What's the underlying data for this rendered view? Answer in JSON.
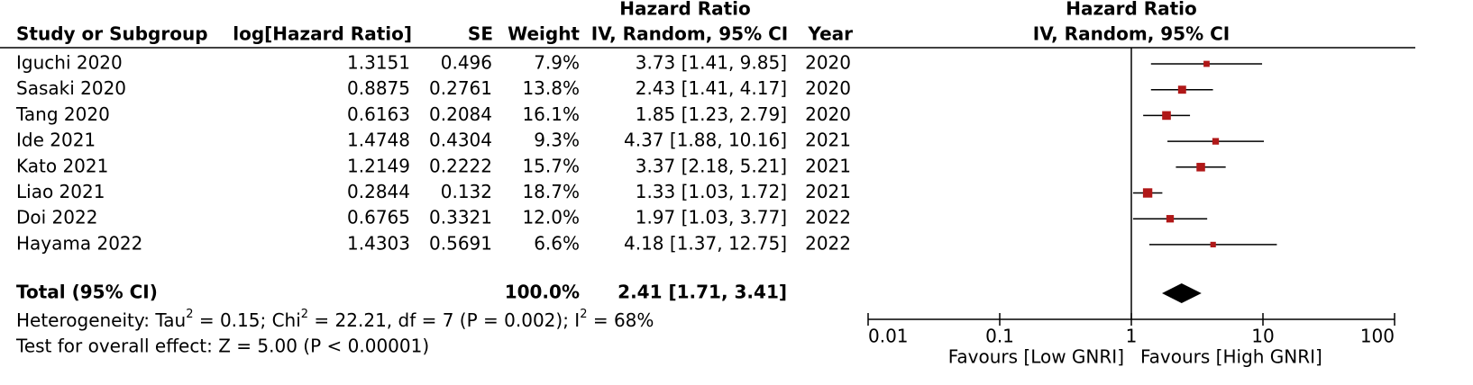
{
  "header": {
    "study": "Study or Subgroup",
    "log_hr": "log[Hazard Ratio]",
    "se": "SE",
    "weight": "Weight",
    "hr_title": "Hazard Ratio",
    "hr_sub": "IV, Random, 95% CI",
    "year": "Year",
    "plot_title": "Hazard Ratio",
    "plot_sub": "IV, Random, 95% CI"
  },
  "rows": [
    {
      "study": "Iguchi 2020",
      "log_hr": 1.3151,
      "se": 0.496,
      "weight": 7.9,
      "weight_label": "7.9%",
      "hr": 3.73,
      "ci": [
        1.41,
        9.85
      ],
      "hr_label": "3.73 [1.41, 9.85]",
      "year": 2020
    },
    {
      "study": "Sasaki 2020",
      "log_hr": 0.8875,
      "se": 0.2761,
      "weight": 13.8,
      "weight_label": "13.8%",
      "hr": 2.43,
      "ci": [
        1.41,
        4.17
      ],
      "hr_label": "2.43 [1.41, 4.17]",
      "year": 2020
    },
    {
      "study": "Tang 2020",
      "log_hr": 0.6163,
      "se": 0.2084,
      "weight": 16.1,
      "weight_label": "16.1%",
      "hr": 1.85,
      "ci": [
        1.23,
        2.79
      ],
      "hr_label": "1.85 [1.23, 2.79]",
      "year": 2020
    },
    {
      "study": "Ide 2021",
      "log_hr": 1.4748,
      "se": 0.4304,
      "weight": 9.3,
      "weight_label": "9.3%",
      "hr": 4.37,
      "ci": [
        1.88,
        10.16
      ],
      "hr_label": "4.37 [1.88, 10.16]",
      "year": 2021
    },
    {
      "study": "Kato 2021",
      "log_hr": 1.2149,
      "se": 0.2222,
      "weight": 15.7,
      "weight_label": "15.7%",
      "hr": 3.37,
      "ci": [
        2.18,
        5.21
      ],
      "hr_label": "3.37 [2.18, 5.21]",
      "year": 2021
    },
    {
      "study": "Liao 2021",
      "log_hr": 0.2844,
      "se": 0.132,
      "weight": 18.7,
      "weight_label": "18.7%",
      "hr": 1.33,
      "ci": [
        1.03,
        1.72
      ],
      "hr_label": "1.33 [1.03, 1.72]",
      "year": 2021
    },
    {
      "study": "Doi 2022",
      "log_hr": 0.6765,
      "se": 0.3321,
      "weight": 12.0,
      "weight_label": "12.0%",
      "hr": 1.97,
      "ci": [
        1.03,
        3.77
      ],
      "hr_label": "1.97 [1.03, 3.77]",
      "year": 2022
    },
    {
      "study": "Hayama 2022",
      "log_hr": 1.4303,
      "se": 0.5691,
      "weight": 6.6,
      "weight_label": "6.6%",
      "hr": 4.18,
      "ci": [
        1.37,
        12.75
      ],
      "hr_label": "4.18 [1.37, 12.75]",
      "year": 2022
    }
  ],
  "total": {
    "study": "Total (95% CI)",
    "weight_label": "100.0%",
    "hr": 2.41,
    "ci": [
      1.71,
      3.41
    ],
    "hr_label": "2.41 [1.71, 3.41]"
  },
  "heterogeneity": [
    "Heterogeneity: Tau",
    "2",
    " = 0.15; Chi",
    "2",
    " = 22.21, df = 7 (P = 0.002); I",
    "2",
    " = 68%"
  ],
  "overall_effect": "Test for overall effect: Z = 5.00 (P < 0.00001)",
  "axis": {
    "scale": "log",
    "xlim": [
      0.01,
      100
    ],
    "xticks": [
      0.01,
      0.1,
      1,
      10,
      100
    ],
    "favours_left": "Favours [Low GNRI]",
    "favours_right": "Favours [High GNRI]",
    "marker_color": "#b01818"
  }
}
